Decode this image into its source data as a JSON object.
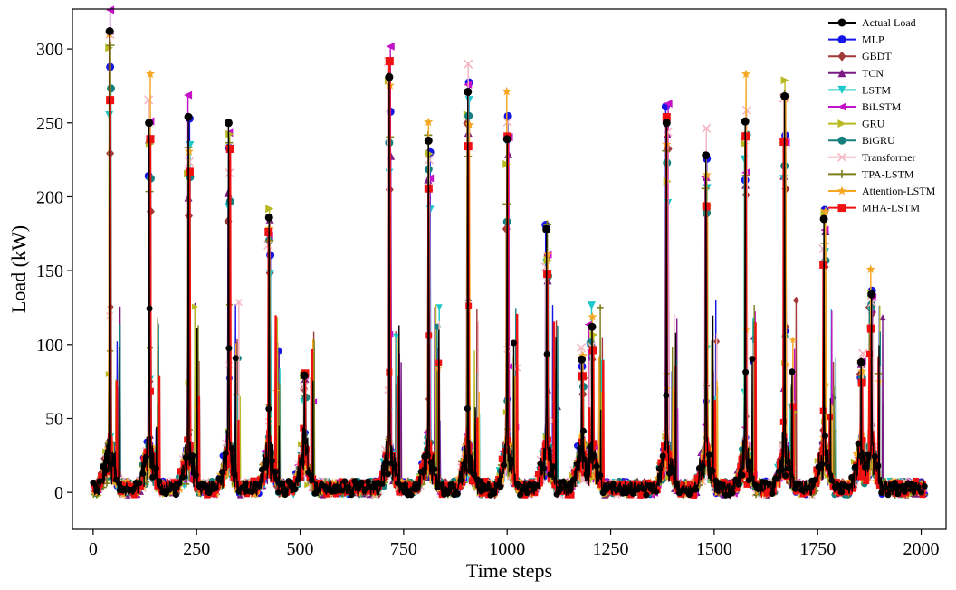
{
  "chart_data": {
    "type": "line",
    "xlabel": "Time steps",
    "ylabel": "Load (kW)",
    "xlim": [
      -50,
      2060
    ],
    "ylim": [
      -25,
      327
    ],
    "xticks": [
      0,
      250,
      500,
      750,
      1000,
      1250,
      1500,
      1750,
      2000
    ],
    "yticks": [
      0,
      50,
      100,
      150,
      200,
      250,
      300
    ],
    "xtick_labels": [
      "0",
      "250",
      "500",
      "750",
      "1000",
      "1250",
      "1500",
      "1750",
      "2000"
    ],
    "ytick_labels": [
      "0",
      "50",
      "100",
      "150",
      "200",
      "250",
      "300"
    ],
    "grid": false,
    "legend_position": "top-right",
    "n_points": 2010,
    "baseline_kw": 3,
    "spikes": [
      {
        "t": 40,
        "actual": 312
      },
      {
        "t": 135,
        "actual": 250
      },
      {
        "t": 230,
        "actual": 254
      },
      {
        "t": 327,
        "actual": 250
      },
      {
        "t": 425,
        "actual": 186
      },
      {
        "t": 510,
        "actual": 79
      },
      {
        "t": 715,
        "actual": 281
      },
      {
        "t": 810,
        "actual": 238
      },
      {
        "t": 905,
        "actual": 271
      },
      {
        "t": 1000,
        "actual": 239
      },
      {
        "t": 1095,
        "actual": 178
      },
      {
        "t": 1180,
        "actual": 90
      },
      {
        "t": 1205,
        "actual": 112
      },
      {
        "t": 1385,
        "actual": 250
      },
      {
        "t": 1480,
        "actual": 228
      },
      {
        "t": 1575,
        "actual": 251
      },
      {
        "t": 1670,
        "actual": 268
      },
      {
        "t": 1765,
        "actual": 185
      },
      {
        "t": 1855,
        "actual": 88
      },
      {
        "t": 1880,
        "actual": 134
      }
    ],
    "series": [
      {
        "name": "Actual Load",
        "color": "#000000",
        "marker": "circle",
        "peak_scale": 1.0
      },
      {
        "name": "MLP",
        "color": "#1515e6",
        "marker": "circle",
        "peak_scale": 0.97
      },
      {
        "name": "GBDT",
        "color": "#a23b38",
        "marker": "diamond",
        "peak_scale": 0.85
      },
      {
        "name": "TCN",
        "color": "#7a1b85",
        "marker": "triangle-up",
        "peak_scale": 0.92
      },
      {
        "name": "LSTM",
        "color": "#1cc7c9",
        "marker": "triangle-down",
        "peak_scale": 0.9
      },
      {
        "name": "BiLSTM",
        "color": "#c312c8",
        "marker": "triangle-left",
        "peak_scale": 1.0
      },
      {
        "name": "GRU",
        "color": "#b9ba22",
        "marker": "triangle-right",
        "peak_scale": 0.98
      },
      {
        "name": "BiGRU",
        "color": "#15807f",
        "marker": "circle",
        "peak_scale": 0.88
      },
      {
        "name": "Transformer",
        "color": "#f4b6c2",
        "marker": "x",
        "peak_scale": 1.0
      },
      {
        "name": "TPA-LSTM",
        "color": "#7d7d1c",
        "marker": "plus",
        "peak_scale": 0.93
      },
      {
        "name": "Attention-LSTM",
        "color": "#f5a623",
        "marker": "star",
        "peak_scale": 1.05
      },
      {
        "name": "MHA-LSTM",
        "color": "#ee1111",
        "marker": "square",
        "peak_scale": 0.97
      }
    ]
  }
}
